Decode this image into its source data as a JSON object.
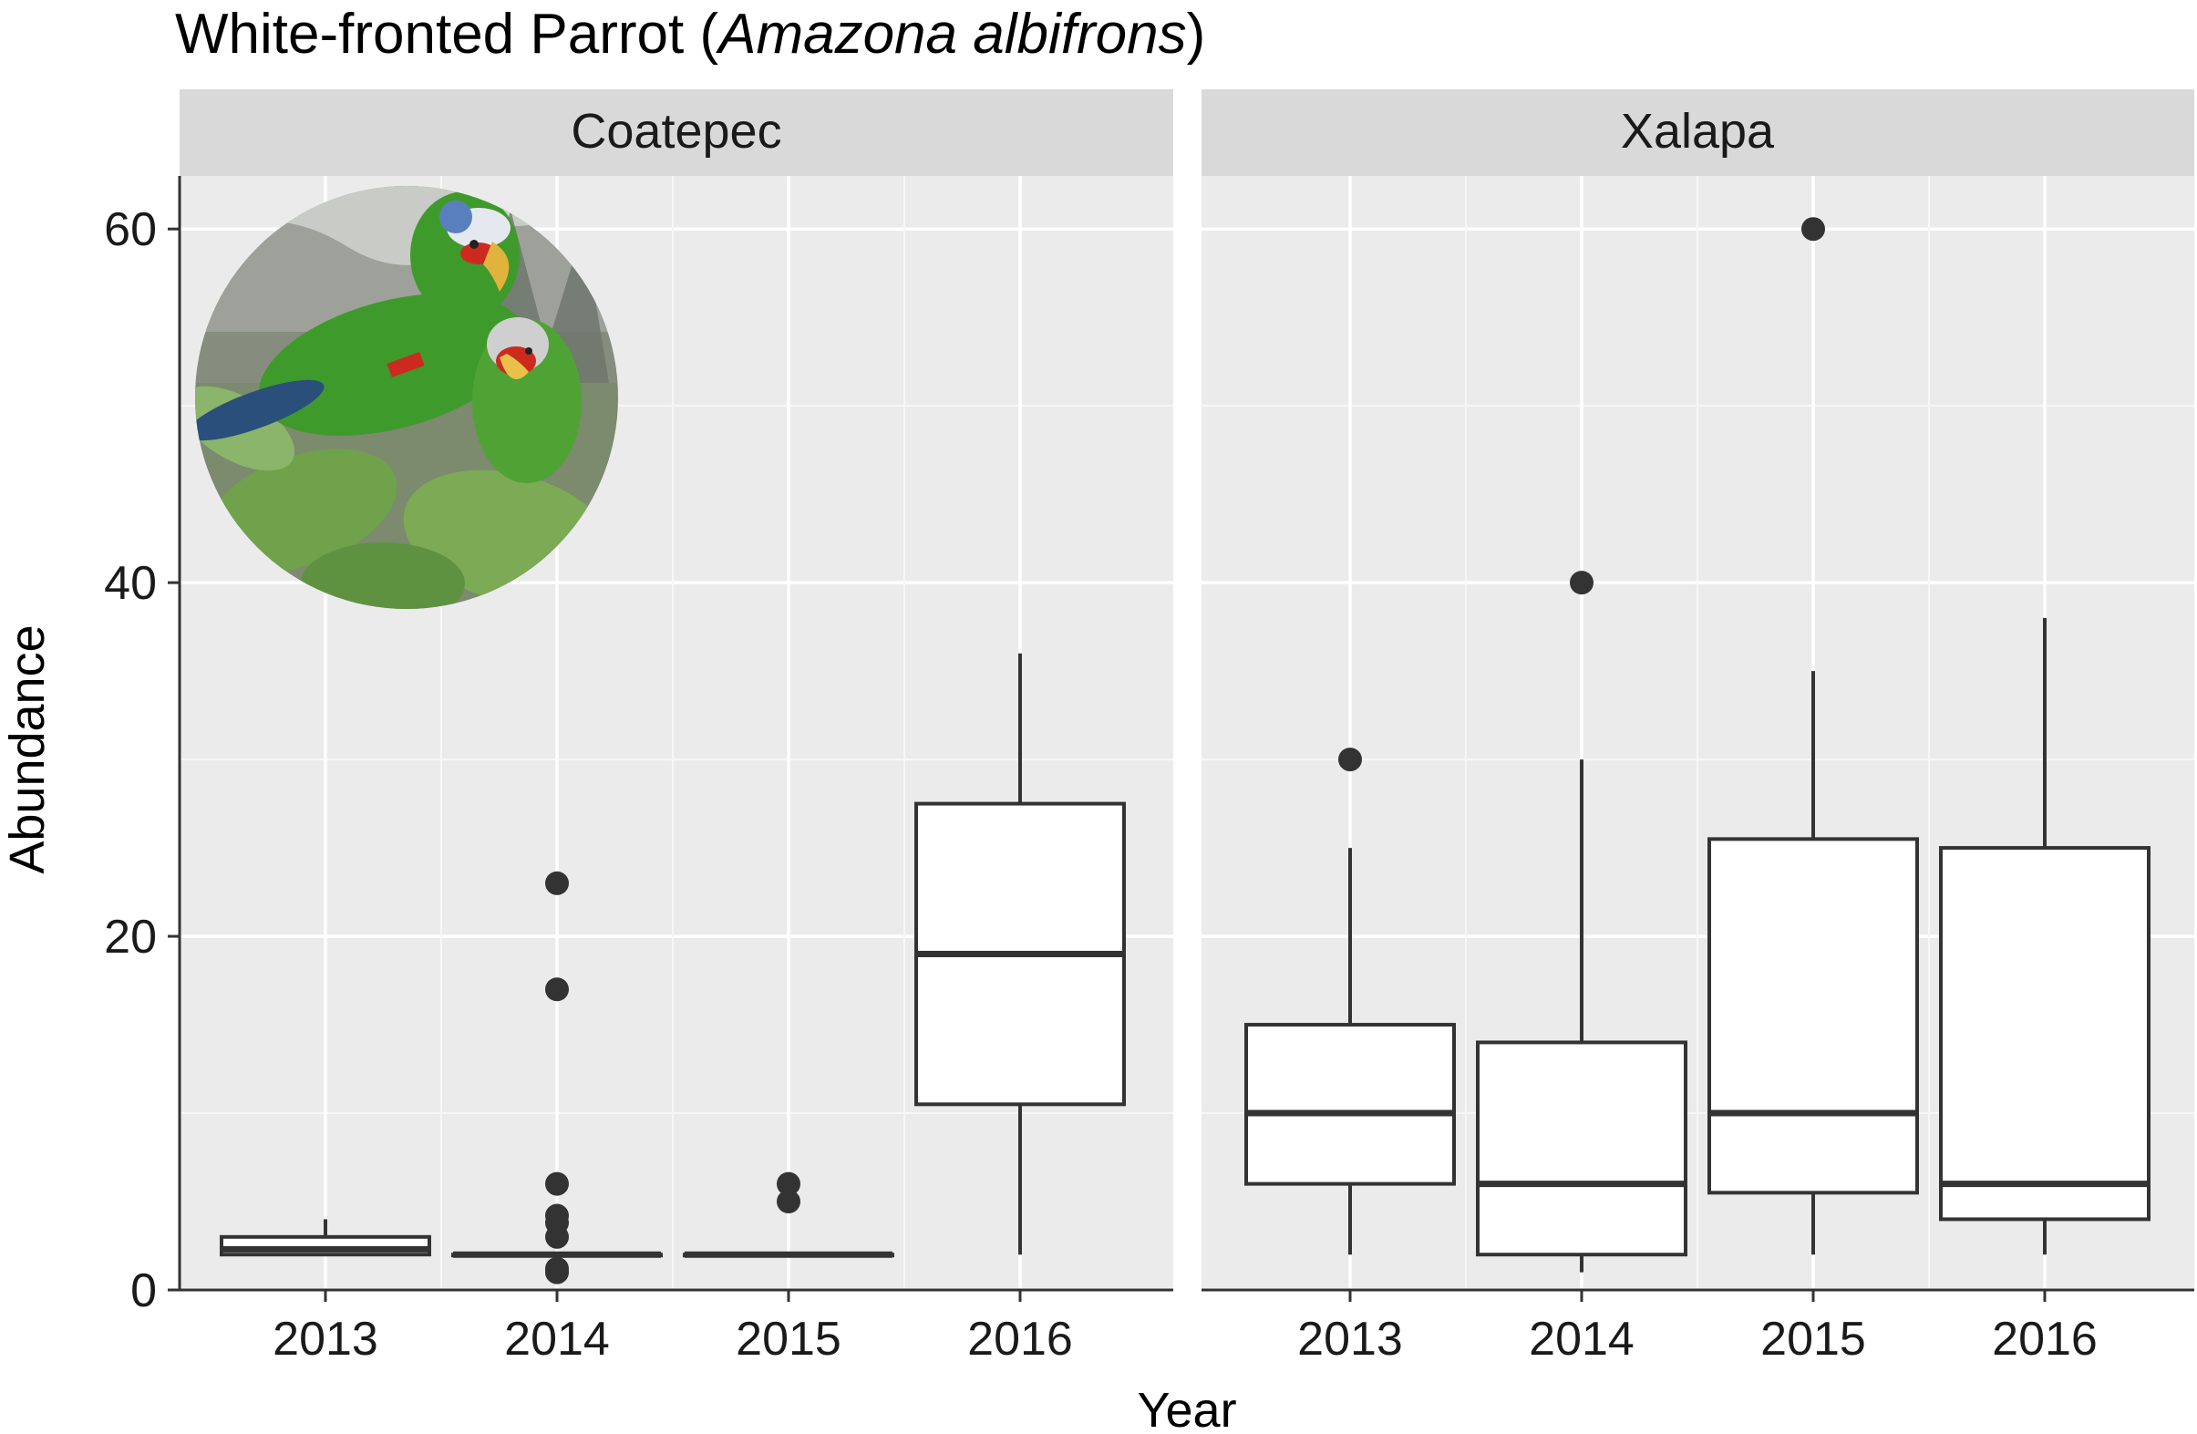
{
  "chart_data": {
    "type": "boxplot",
    "title": {
      "prefix": "White-fronted Parrot (",
      "italic": "Amazona albifrons",
      "suffix": ")"
    },
    "xlabel": "Year",
    "ylabel": "Abundance",
    "ylim": [
      0,
      63
    ],
    "yticks": [
      0,
      20,
      40,
      60
    ],
    "y_tick_labels": [
      "0",
      "20",
      "40",
      "60"
    ],
    "categories": [
      "2013",
      "2014",
      "2015",
      "2016"
    ],
    "grid": true,
    "background": "#ebebeb",
    "strip_background": "#d9d9d9",
    "panels": [
      {
        "name": "Coatepec",
        "boxes": [
          {
            "x": "2013",
            "min": 2,
            "q1": 2,
            "median": 2.3,
            "q3": 3,
            "max": 4,
            "outliers": []
          },
          {
            "x": "2014",
            "min": 2,
            "q1": 2,
            "median": 2,
            "q3": 2,
            "max": 2,
            "outliers": [
              1,
              1.2,
              3,
              3.8,
              4.2,
              6,
              17,
              23
            ]
          },
          {
            "x": "2015",
            "min": 2,
            "q1": 2,
            "median": 2,
            "q3": 2,
            "max": 2,
            "outliers": [
              5,
              6
            ]
          },
          {
            "x": "2016",
            "min": 2,
            "q1": 10.5,
            "median": 19,
            "q3": 27.5,
            "max": 36,
            "outliers": []
          }
        ]
      },
      {
        "name": "Xalapa",
        "boxes": [
          {
            "x": "2013",
            "min": 2,
            "q1": 6,
            "median": 10,
            "q3": 15,
            "max": 25,
            "outliers": [
              30
            ]
          },
          {
            "x": "2014",
            "min": 1,
            "q1": 2,
            "median": 6,
            "q3": 14,
            "max": 30,
            "outliers": [
              40
            ]
          },
          {
            "x": "2015",
            "min": 2,
            "q1": 5.5,
            "median": 10,
            "q3": 25.5,
            "max": 35,
            "outliers": [
              60
            ]
          },
          {
            "x": "2016",
            "min": 2,
            "q1": 4,
            "median": 6,
            "q3": 25,
            "max": 38,
            "outliers": []
          }
        ]
      }
    ]
  },
  "inset_photo": {
    "subject": "white-fronted-parrots-photo",
    "colors": {
      "plumage": "#3f9a2c",
      "leaf": "#6fa24a",
      "wing_patch": "#cc2a1f",
      "sky": "#c9cbc7"
    }
  }
}
